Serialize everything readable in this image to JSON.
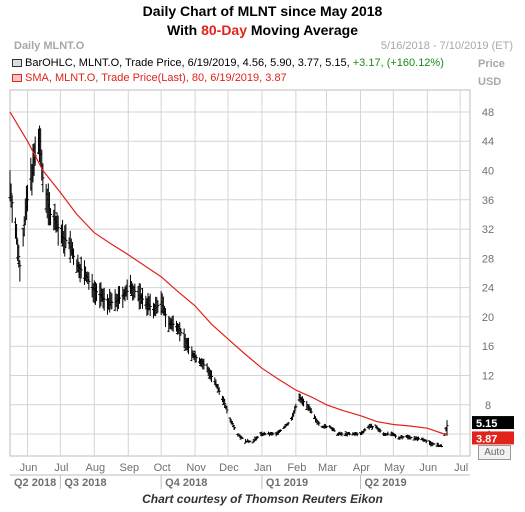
{
  "header": {
    "title_line1": "Daily Chart of MLNT since May 2018",
    "title_line2_pre": "With ",
    "title_line2_highlight": "80-Day",
    "title_line2_post": " Moving Average",
    "chart_name": "Daily MLNT.O",
    "date_range": "5/16/2018 - 7/10/2019 (ET)"
  },
  "legend": {
    "bar_text": "BarOHLC, MLNT.O, Trade Price, 6/19/2019, 4.56, 5.90, 3.77, 5.15,",
    "bar_change": "+3.17, (+160.12%)",
    "sma_text": "SMA, MLNT.O, Trade Price(Last), 80, 6/19/2019, 3.87"
  },
  "axis": {
    "unit_line1": "Price",
    "unit_line2": "USD",
    "auto_button": "Auto"
  },
  "quarters": [
    "Q2 2018",
    "Q3 2018",
    "Q4 2018",
    "Q1 2019",
    "Q2 2019"
  ],
  "credit": "Chart courtesy of Thomson Reuters Eikon",
  "colors": {
    "bars": "#000000",
    "sma": "#e2231a",
    "price_tag_bg": "#000000",
    "sma_tag_bg": "#e2231a",
    "grid": "#d4d4d4",
    "title_highlight": "#e2231a"
  },
  "chart_data": {
    "type": "line",
    "x_unit": "date",
    "yticks": [
      4,
      8,
      12,
      16,
      20,
      24,
      28,
      32,
      36,
      40,
      44,
      48
    ],
    "ylim": [
      1,
      51
    ],
    "xlim": [
      "2018-05-16",
      "2019-07-10"
    ],
    "x_ticks": [
      "Jun",
      "Jul",
      "Aug",
      "Sep",
      "Oct",
      "Nov",
      "Dec",
      "Jan",
      "Feb",
      "Mar",
      "Apr",
      "May",
      "Jun",
      "Jul"
    ],
    "x_tick_dates": [
      "2018-06-01",
      "2018-07-01",
      "2018-08-01",
      "2018-09-01",
      "2018-10-01",
      "2018-11-01",
      "2018-12-01",
      "2019-01-01",
      "2019-02-01",
      "2019-03-01",
      "2019-04-01",
      "2019-05-01",
      "2019-06-01",
      "2019-07-01"
    ],
    "grid": true,
    "last_price_label": "5.15",
    "last_sma_label": "3.87",
    "series": [
      {
        "name": "BarOHLC, MLNT.O",
        "kind": "ohlc",
        "x": [
          "2018-05-16",
          "2018-05-21",
          "2018-05-25",
          "2018-05-30",
          "2018-06-04",
          "2018-06-08",
          "2018-06-12",
          "2018-06-15",
          "2018-06-19",
          "2018-06-22",
          "2018-06-27",
          "2018-07-02",
          "2018-07-09",
          "2018-07-16",
          "2018-07-23",
          "2018-07-30",
          "2018-08-06",
          "2018-08-13",
          "2018-08-20",
          "2018-08-27",
          "2018-09-04",
          "2018-09-10",
          "2018-09-17",
          "2018-09-24",
          "2018-10-01",
          "2018-10-08",
          "2018-10-15",
          "2018-10-22",
          "2018-10-29",
          "2018-11-05",
          "2018-11-12",
          "2018-11-19",
          "2018-11-26",
          "2018-12-03",
          "2018-12-10",
          "2018-12-17",
          "2018-12-24",
          "2018-12-31",
          "2019-01-07",
          "2019-01-14",
          "2019-01-22",
          "2019-01-28",
          "2019-02-04",
          "2019-02-11",
          "2019-02-19",
          "2019-02-25",
          "2019-03-04",
          "2019-03-11",
          "2019-03-18",
          "2019-03-25",
          "2019-04-01",
          "2019-04-08",
          "2019-04-15",
          "2019-04-22",
          "2019-04-29",
          "2019-05-06",
          "2019-05-13",
          "2019-05-20",
          "2019-05-28",
          "2019-06-03",
          "2019-06-10",
          "2019-06-14",
          "2019-06-19"
        ],
        "values": [
          38,
          32,
          27,
          34,
          39,
          42,
          44,
          39,
          36,
          34,
          33,
          31,
          30,
          27,
          26,
          24,
          23,
          22,
          22,
          23,
          24,
          23,
          22,
          21,
          22,
          19,
          19,
          17,
          15,
          14,
          13,
          11,
          9,
          6,
          4,
          3,
          3,
          4,
          4,
          4,
          5,
          6,
          9,
          8,
          6,
          5,
          5,
          4,
          4,
          4,
          4,
          5,
          5,
          4,
          4,
          3.5,
          3.7,
          3.4,
          3.3,
          2.8,
          2.5,
          2.3,
          5.15
        ]
      },
      {
        "name": "SMA 80",
        "kind": "line",
        "x": [
          "2018-05-16",
          "2018-06-01",
          "2018-06-15",
          "2018-07-01",
          "2018-07-16",
          "2018-08-01",
          "2018-08-16",
          "2018-09-01",
          "2018-09-16",
          "2018-10-01",
          "2018-10-16",
          "2018-11-01",
          "2018-11-16",
          "2018-12-01",
          "2018-12-16",
          "2019-01-01",
          "2019-01-16",
          "2019-02-01",
          "2019-02-16",
          "2019-03-01",
          "2019-03-16",
          "2019-04-01",
          "2019-04-16",
          "2019-05-01",
          "2019-05-16",
          "2019-06-01",
          "2019-06-19"
        ],
        "values": [
          48,
          44,
          40,
          37,
          34,
          31.5,
          30,
          28.5,
          27,
          25.5,
          23.5,
          21.5,
          19,
          17,
          15,
          13,
          11.5,
          10,
          9,
          8,
          7.2,
          6.5,
          5.7,
          5.3,
          5.1,
          4.8,
          3.87
        ]
      }
    ]
  }
}
